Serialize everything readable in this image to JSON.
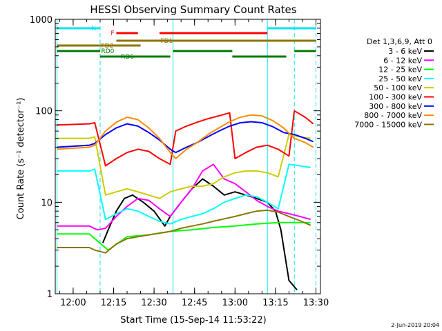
{
  "chart_data": {
    "type": "line",
    "title": "HESSI Observing Summary Count Rates",
    "xlabel": "Start Time (15-Sep-14 11:53:22)",
    "ylabel": "Count Rate (s⁻¹ detector⁻¹)",
    "y_scale": "log",
    "ylim": [
      1,
      1000
    ],
    "x_unit": "minutes after 11:53:22",
    "xlim": [
      "11:53:22",
      "13:31:40"
    ],
    "x_ticks": [
      {
        "t": "12:00",
        "label": "12:00"
      },
      {
        "t": "12:15",
        "label": "12:15"
      },
      {
        "t": "12:30",
        "label": "12:30"
      },
      {
        "t": "12:45",
        "label": "12:45"
      },
      {
        "t": "13:00",
        "label": "13:00"
      },
      {
        "t": "13:15",
        "label": "13:15"
      },
      {
        "t": "13:30",
        "label": "13:30"
      }
    ],
    "y_ticks": [
      {
        "v": 1,
        "label": "1"
      },
      {
        "v": 10,
        "label": "10"
      },
      {
        "v": 100,
        "label": "100"
      },
      {
        "v": 1000,
        "label": "1000"
      }
    ],
    "legend_title": "Det 1,3,6,9, Att 0",
    "legend_position": "right",
    "series": [
      {
        "name": "3 - 6 keV",
        "color": "#000000",
        "x": [
          "12:11",
          "12:13",
          "12:16",
          "12:19",
          "12:22",
          "12:26",
          "12:30",
          "12:34",
          "12:36",
          "12:40",
          "12:44",
          "12:48",
          "12:52",
          "12:56",
          "13:00",
          "13:04",
          "13:08",
          "13:12",
          "13:15",
          "13:17",
          "13:20",
          "13:23"
        ],
        "values": [
          3.6,
          5,
          8,
          11,
          12,
          10,
          8,
          5.5,
          7,
          10,
          14,
          18,
          15,
          12,
          13,
          12,
          11,
          10,
          8,
          5,
          1.4,
          1.1
        ]
      },
      {
        "name": "6 - 12 keV",
        "color": "#ff00ff",
        "x": [
          "11:54",
          "12:06",
          "12:09",
          "12:12",
          "12:16",
          "12:20",
          "12:24",
          "12:28",
          "12:32",
          "12:36",
          "12:40",
          "12:44",
          "12:48",
          "12:52",
          "12:56",
          "13:00",
          "13:04",
          "13:08",
          "13:12",
          "13:16",
          "13:20",
          "13:24",
          "13:28"
        ],
        "values": [
          5.5,
          5.5,
          5,
          5.2,
          7,
          9,
          11,
          10.5,
          8.5,
          7,
          10,
          14,
          22,
          26,
          18,
          16,
          13,
          10.5,
          9,
          8,
          7.5,
          7,
          6.5
        ]
      },
      {
        "name": "12 - 25 keV",
        "color": "#00ff00",
        "x": [
          "11:54",
          "12:06",
          "12:08",
          "12:13",
          "12:20",
          "12:28",
          "12:36",
          "12:44",
          "12:52",
          "13:00",
          "13:08",
          "13:16",
          "13:22",
          "13:28"
        ],
        "values": [
          4.5,
          4.5,
          4,
          3,
          4.2,
          4.4,
          4.8,
          5,
          5.3,
          5.5,
          5.8,
          6,
          6,
          6
        ]
      },
      {
        "name": "25 - 50 keV",
        "color": "#00ffff",
        "x": [
          "11:54",
          "12:06",
          "12:08",
          "12:12",
          "12:16",
          "12:20",
          "12:24",
          "12:28",
          "12:32",
          "12:36",
          "12:40",
          "12:44",
          "12:48",
          "12:52",
          "12:56",
          "13:00",
          "13:04",
          "13:08",
          "13:12",
          "13:16",
          "13:20",
          "13:24",
          "13:28"
        ],
        "values": [
          22,
          22,
          23,
          6.5,
          7.5,
          8.5,
          8,
          7,
          6.2,
          5.8,
          6.5,
          7,
          7.5,
          8.5,
          10,
          11,
          12,
          11.5,
          10,
          8.5,
          26,
          25,
          24
        ]
      },
      {
        "name": "50 - 100 keV",
        "color": "#cccc00",
        "x": [
          "11:54",
          "12:06",
          "12:08",
          "12:12",
          "12:16",
          "12:20",
          "12:24",
          "12:28",
          "12:32",
          "12:36",
          "12:40",
          "12:44",
          "12:48",
          "12:52",
          "12:56",
          "13:00",
          "13:04",
          "13:08",
          "13:12",
          "13:16",
          "13:20",
          "13:24",
          "13:28"
        ],
        "values": [
          50,
          50,
          52,
          12,
          13,
          14,
          13,
          12,
          11,
          13,
          14,
          15,
          15,
          16,
          19,
          21,
          22,
          22,
          21,
          19,
          55,
          52,
          50
        ]
      },
      {
        "name": "100 - 300 keV",
        "color": "#ff0000",
        "x": [
          "11:54",
          "12:06",
          "12:08",
          "12:12",
          "12:16",
          "12:20",
          "12:24",
          "12:28",
          "12:32",
          "12:36",
          "12:38",
          "12:42",
          "12:46",
          "12:50",
          "12:54",
          "12:58",
          "13:00",
          "13:04",
          "13:08",
          "13:12",
          "13:16",
          "13:20",
          "13:22",
          "13:26",
          "13:29"
        ],
        "values": [
          70,
          72,
          74,
          25,
          30,
          35,
          38,
          36,
          30,
          26,
          60,
          68,
          75,
          82,
          88,
          95,
          30,
          35,
          40,
          42,
          38,
          32,
          100,
          85,
          72
        ]
      },
      {
        "name": "300 - 800 keV",
        "color": "#0000ff",
        "x": [
          "11:54",
          "12:06",
          "12:08",
          "12:12",
          "12:16",
          "12:20",
          "12:24",
          "12:28",
          "12:32",
          "12:36",
          "12:38",
          "12:42",
          "12:46",
          "12:50",
          "12:54",
          "12:58",
          "13:02",
          "13:06",
          "13:10",
          "13:14",
          "13:18",
          "13:22",
          "13:26",
          "13:29"
        ],
        "values": [
          40,
          42,
          44,
          55,
          65,
          72,
          68,
          58,
          48,
          38,
          35,
          40,
          45,
          52,
          60,
          68,
          74,
          76,
          74,
          67,
          58,
          55,
          50,
          46
        ]
      },
      {
        "name": "800 - 7000 keV",
        "color": "#ff8c00",
        "x": [
          "11:54",
          "12:06",
          "12:08",
          "12:12",
          "12:16",
          "12:20",
          "12:24",
          "12:28",
          "12:32",
          "12:36",
          "12:38",
          "12:42",
          "12:46",
          "12:50",
          "12:54",
          "12:58",
          "13:02",
          "13:06",
          "13:10",
          "13:14",
          "13:18",
          "13:22",
          "13:26",
          "13:29"
        ],
        "values": [
          38,
          40,
          42,
          60,
          75,
          85,
          80,
          65,
          50,
          35,
          30,
          38,
          45,
          55,
          65,
          76,
          85,
          90,
          88,
          78,
          65,
          50,
          45,
          40
        ]
      },
      {
        "name": "7000 - 15000 keV",
        "color": "#8b7500",
        "x": [
          "11:54",
          "12:06",
          "12:08",
          "12:12",
          "12:16",
          "12:20",
          "12:24",
          "12:28",
          "12:32",
          "12:36",
          "12:40",
          "12:44",
          "12:48",
          "12:52",
          "12:56",
          "13:00",
          "13:04",
          "13:08",
          "13:12",
          "13:16",
          "13:20",
          "13:24",
          "13:28"
        ],
        "values": [
          3.2,
          3.2,
          3,
          2.8,
          3.5,
          4,
          4.2,
          4.4,
          4.6,
          4.8,
          5.2,
          5.5,
          5.8,
          6.2,
          6.6,
          7,
          7.5,
          8,
          8.2,
          7.8,
          7,
          6.3,
          5.6
        ]
      }
    ],
    "flag_bars": [
      {
        "label": "N",
        "color": "#00e5ee",
        "segments": [
          [
            "11:54",
            "12:10"
          ],
          [
            "13:12",
            "13:30"
          ]
        ]
      },
      {
        "label": "F",
        "color": "#ff0000",
        "segments": [
          [
            "12:16",
            "12:24"
          ],
          [
            "12:32",
            "13:12"
          ]
        ]
      },
      {
        "label": "FD1",
        "color": "#8b7500",
        "segments": [
          [
            "12:16",
            "13:30"
          ]
        ]
      },
      {
        "label": "FD2",
        "color": "#8b7500",
        "segments": [
          [
            "11:54",
            "12:25"
          ]
        ]
      },
      {
        "label": "RD0",
        "color": "#007800",
        "segments": [
          [
            "11:54",
            "12:10"
          ],
          [
            "12:37",
            "12:59"
          ],
          [
            "13:22",
            "13:30"
          ]
        ]
      },
      {
        "label": "RD6",
        "color": "#007800",
        "segments": [
          [
            "12:10",
            "12:36"
          ],
          [
            "12:59",
            "13:19"
          ]
        ]
      }
    ],
    "vertical_lines": [
      {
        "t": "11:54",
        "style": "solid"
      },
      {
        "t": "12:10",
        "style": "dashed"
      },
      {
        "t": "12:37",
        "style": "solid"
      },
      {
        "t": "13:12",
        "style": "solid"
      },
      {
        "t": "13:22",
        "style": "dashed"
      },
      {
        "t": "13:30",
        "style": "dashed"
      }
    ],
    "footer_date": "2-Jun-2019 20:04"
  },
  "colors": {
    "axis": "#000000",
    "background": "#ffffff",
    "vline": "#00e5ee"
  }
}
